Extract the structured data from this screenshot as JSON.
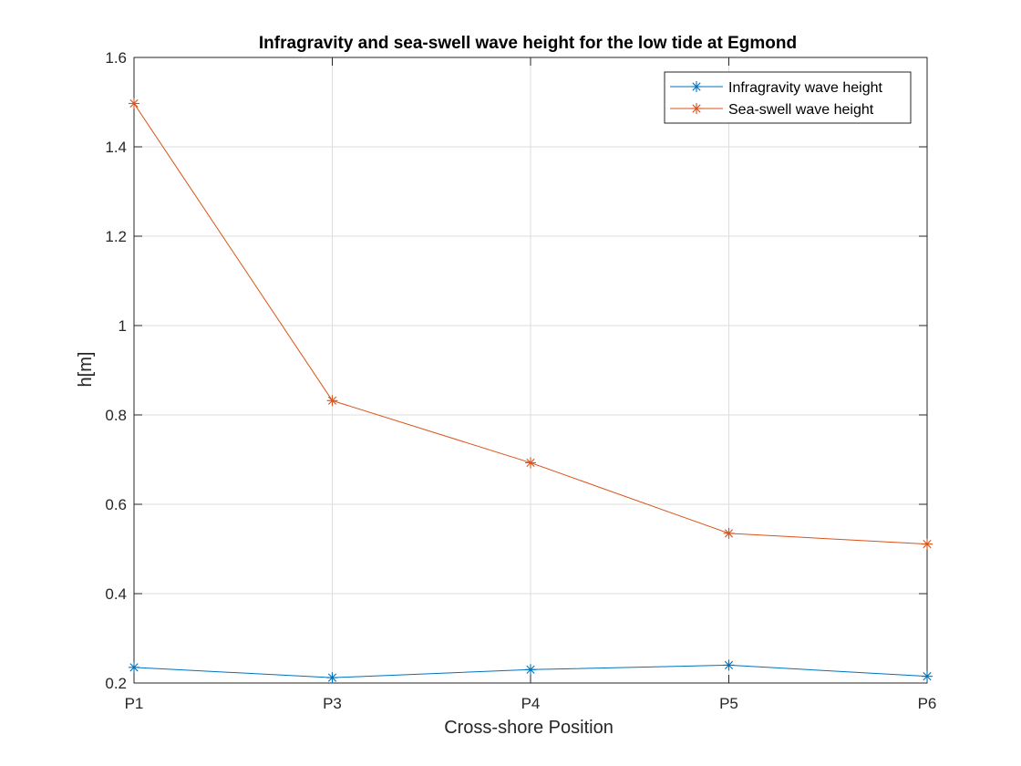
{
  "chart_data": {
    "type": "line",
    "title": "Infragravity and sea-swell wave height for the low tide at Egmond",
    "xlabel": "Cross-shore Position",
    "ylabel": "h[m]",
    "categories": [
      "P1",
      "P3",
      "P4",
      "P5",
      "P6"
    ],
    "ylim": [
      0.2,
      1.6
    ],
    "yticks": [
      0.2,
      0.4,
      0.6,
      0.8,
      1,
      1.2,
      1.4,
      1.6
    ],
    "ytick_labels": [
      "0.2",
      "0.4",
      "0.6",
      "0.8",
      "1",
      "1.2",
      "1.4",
      "1.6"
    ],
    "grid": true,
    "legend_position": "top-right",
    "marker": "asterisk",
    "series": [
      {
        "name": "Infragravity wave height",
        "color": "#0072BD",
        "values": [
          0.235,
          0.212,
          0.23,
          0.24,
          0.215
        ]
      },
      {
        "name": "Sea-swell wave height",
        "color": "#D95319",
        "values": [
          1.497,
          0.832,
          0.693,
          0.535,
          0.511
        ]
      }
    ]
  }
}
